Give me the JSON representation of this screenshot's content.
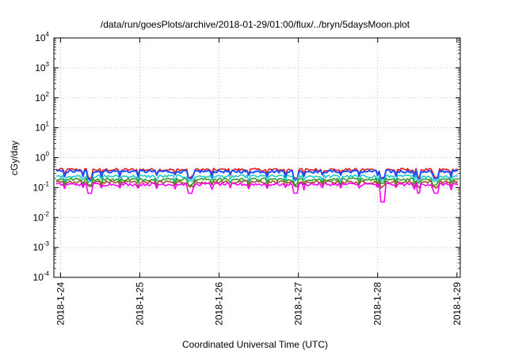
{
  "chart_data": {
    "type": "line",
    "title": "/data/run/goesPlots/archive/2018-01-29/01:00/flux/../bryn/5daysMoon.plot",
    "xlabel": "Coordinated Universal Time (UTC)",
    "ylabel": "cGy/day",
    "yscale": "log",
    "ylim": [
      0.0001,
      10000
    ],
    "y_ticks": [
      {
        "base": "10",
        "exp": "-4",
        "value": 0.0001
      },
      {
        "base": "10",
        "exp": "-3",
        "value": 0.001
      },
      {
        "base": "10",
        "exp": "-2",
        "value": 0.01
      },
      {
        "base": "10",
        "exp": "-1",
        "value": 0.1
      },
      {
        "base": "10",
        "exp": "0",
        "value": 1
      },
      {
        "base": "10",
        "exp": "1",
        "value": 10
      },
      {
        "base": "10",
        "exp": "2",
        "value": 100
      },
      {
        "base": "10",
        "exp": "3",
        "value": 1000
      },
      {
        "base": "10",
        "exp": "4",
        "value": 10000
      }
    ],
    "x_ticks": [
      "2018-1-24",
      "2018-1-25",
      "2018-1-26",
      "2018-1-27",
      "2018-1-28",
      "2018-1-29"
    ],
    "xlim": [
      "2018-01-23T22:00",
      "2018-01-29T01:00"
    ],
    "grid": true,
    "series": [
      {
        "color": "#e41a1c",
        "level": 0.4,
        "x": [
          "2018-01-24T00:00",
          "2018-01-24T12:00",
          "2018-01-25T00:00",
          "2018-01-25T12:00",
          "2018-01-26T00:00",
          "2018-01-26T12:00",
          "2018-01-27T00:00",
          "2018-01-27T12:00",
          "2018-01-28T00:00",
          "2018-01-28T12:00",
          "2018-01-29T00:00"
        ],
        "y": [
          0.38,
          0.42,
          0.4,
          0.41,
          0.37,
          0.4,
          0.39,
          0.41,
          0.4,
          0.39,
          0.4
        ]
      },
      {
        "color": "#1f4fff",
        "level": 0.35,
        "x": [
          "2018-01-24T00:00",
          "2018-01-24T12:00",
          "2018-01-25T00:00",
          "2018-01-25T12:00",
          "2018-01-26T00:00",
          "2018-01-26T12:00",
          "2018-01-27T00:00",
          "2018-01-27T12:00",
          "2018-01-28T00:00",
          "2018-01-28T12:00",
          "2018-01-29T00:00"
        ],
        "y": [
          0.33,
          0.37,
          0.35,
          0.36,
          0.32,
          0.35,
          0.34,
          0.36,
          0.35,
          0.34,
          0.35
        ]
      },
      {
        "color": "#20c8c8",
        "level": 0.24,
        "x": [
          "2018-01-24T00:00",
          "2018-01-24T12:00",
          "2018-01-25T00:00",
          "2018-01-25T12:00",
          "2018-01-26T00:00",
          "2018-01-26T12:00",
          "2018-01-27T00:00",
          "2018-01-27T12:00",
          "2018-01-28T00:00",
          "2018-01-28T12:00",
          "2018-01-29T00:00"
        ],
        "y": [
          0.23,
          0.25,
          0.24,
          0.24,
          0.22,
          0.24,
          0.23,
          0.24,
          0.24,
          0.23,
          0.24
        ]
      },
      {
        "color": "#2ca02c",
        "level": 0.19,
        "x": [
          "2018-01-24T00:00",
          "2018-01-24T12:00",
          "2018-01-25T00:00",
          "2018-01-25T12:00",
          "2018-01-26T00:00",
          "2018-01-26T12:00",
          "2018-01-27T00:00",
          "2018-01-27T12:00",
          "2018-01-28T00:00",
          "2018-01-28T12:00",
          "2018-01-29T00:00"
        ],
        "y": [
          0.18,
          0.2,
          0.19,
          0.19,
          0.18,
          0.19,
          0.19,
          0.19,
          0.19,
          0.18,
          0.19
        ]
      },
      {
        "color": "#a0522d",
        "level": 0.155,
        "x": [
          "2018-01-24T00:00",
          "2018-01-24T12:00",
          "2018-01-25T00:00",
          "2018-01-25T12:00",
          "2018-01-26T00:00",
          "2018-01-26T12:00",
          "2018-01-27T00:00",
          "2018-01-27T12:00",
          "2018-01-28T00:00",
          "2018-01-28T12:00",
          "2018-01-29T00:00"
        ],
        "y": [
          0.15,
          0.16,
          0.155,
          0.155,
          0.15,
          0.155,
          0.15,
          0.155,
          0.155,
          0.15,
          0.155
        ]
      },
      {
        "color": "#ff00ff",
        "level": 0.13,
        "x": [
          "2018-01-24T00:00",
          "2018-01-24T10:00",
          "2018-01-25T00:00",
          "2018-01-25T16:00",
          "2018-01-26T00:00",
          "2018-01-27T00:00",
          "2018-01-27T12:00",
          "2018-01-28T02:00",
          "2018-01-28T12:00",
          "2018-01-28T22:00",
          "2018-01-29T00:00"
        ],
        "y": [
          0.13,
          0.07,
          0.13,
          0.07,
          0.13,
          0.075,
          0.13,
          0.035,
          0.065,
          0.07,
          0.13
        ]
      }
    ]
  }
}
